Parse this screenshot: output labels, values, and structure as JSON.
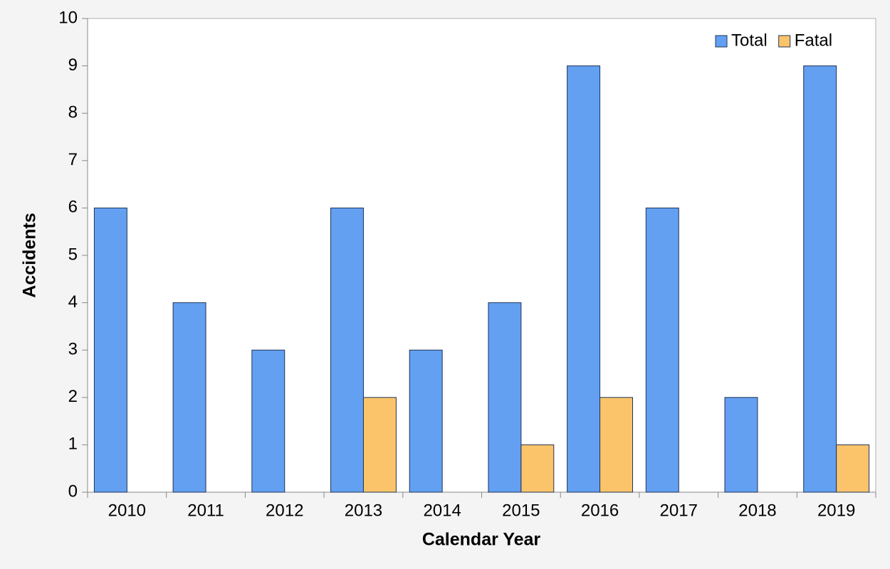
{
  "chart_data": {
    "type": "bar",
    "x_label": "Calendar Year",
    "y_label": "Accidents",
    "categories": [
      "2010",
      "2011",
      "2012",
      "2013",
      "2014",
      "2015",
      "2016",
      "2017",
      "2018",
      "2019"
    ],
    "series": [
      {
        "name": "Total",
        "color": "#63a0f2",
        "values": [
          6,
          4,
          3,
          6,
          3,
          4,
          9,
          6,
          2,
          9
        ]
      },
      {
        "name": "Fatal",
        "color": "#fbc46a",
        "values": [
          0,
          0,
          0,
          2,
          0,
          1,
          2,
          0,
          0,
          1
        ]
      }
    ],
    "ylim": [
      0,
      10
    ],
    "yticks": [
      0,
      1,
      2,
      3,
      4,
      5,
      6,
      7,
      8,
      9,
      10
    ],
    "grid": false,
    "legend": "upper right"
  }
}
